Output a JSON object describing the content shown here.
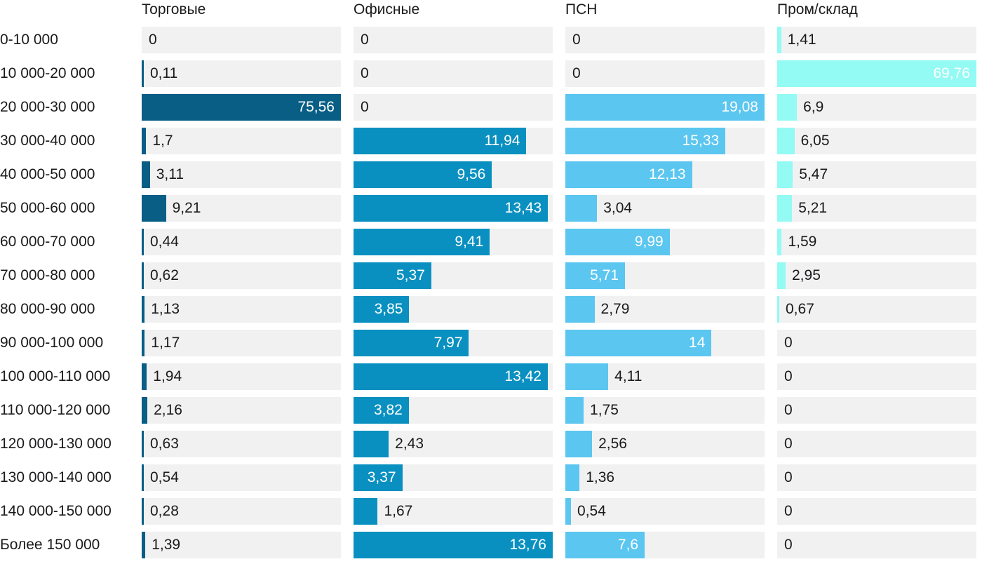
{
  "chart_data": {
    "type": "bar",
    "orientation": "horizontal",
    "value_label_position": "on-bar",
    "grid": false,
    "legend_position": "column-headers-top",
    "track_color": "#f1f1f2",
    "text_color": "#1a1a1c",
    "bar_label_color_inside": "#ffffff",
    "decimal_separator": ",",
    "categories": [
      "0-10 000",
      "10 000-20 000",
      "20 000-30 000",
      "30 000-40 000",
      "40 000-50 000",
      "50 000-60 000",
      "60 000-70 000",
      "70 000-80 000",
      "80 000-90 000",
      "90 000-100 000",
      "100 000-110 000",
      "110 000-120 000",
      "120 000-130 000",
      "130 000-140 000",
      "140 000-150 000",
      "Более 150 000"
    ],
    "series": [
      {
        "name": "Торговые",
        "color": "#085e85",
        "axis_max": 75.56,
        "values": [
          0,
          0.11,
          75.56,
          1.7,
          3.11,
          9.21,
          0.44,
          0.62,
          1.13,
          1.17,
          1.94,
          2.16,
          0.63,
          0.54,
          0.28,
          1.39
        ]
      },
      {
        "name": "Офисные",
        "color": "#0a90c0",
        "axis_max": 13.76,
        "values": [
          0,
          0,
          0,
          11.94,
          9.56,
          13.43,
          9.41,
          5.37,
          3.85,
          7.97,
          13.42,
          3.82,
          2.43,
          3.37,
          1.67,
          13.76
        ]
      },
      {
        "name": "ПСН",
        "color": "#5bc6f0",
        "axis_max": 19.08,
        "values": [
          0,
          0,
          19.08,
          15.33,
          12.13,
          3.04,
          9.99,
          5.71,
          2.79,
          14,
          4.11,
          1.75,
          2.56,
          1.36,
          0.54,
          7.6
        ]
      },
      {
        "name": "Пром/склад",
        "color": "#93faf4",
        "axis_max": 69.76,
        "values": [
          1.41,
          69.76,
          6.9,
          6.05,
          5.47,
          5.21,
          1.59,
          2.95,
          0.67,
          0,
          0,
          0,
          0,
          0,
          0,
          0
        ]
      }
    ]
  }
}
